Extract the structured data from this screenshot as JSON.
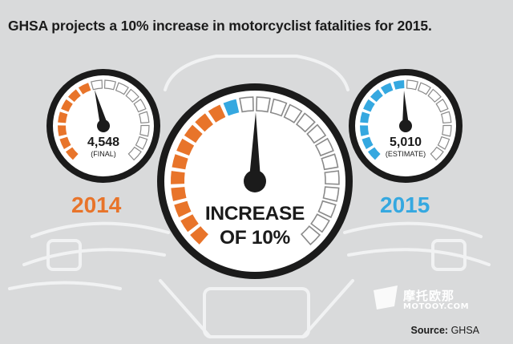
{
  "title": "GHSA projects a 10% increase in motorcyclist fatalities for 2015.",
  "colors": {
    "background": "#d9dadb",
    "orange": "#e8742a",
    "blue": "#35a8e0",
    "dark": "#1b1b1b",
    "empty_segment": "#ffffff",
    "outline": "#8a8a8a"
  },
  "gauges": [
    {
      "value": "4,548",
      "note": "(FINAL)",
      "year": "2014",
      "lit_segments": 7,
      "segment_color": "orange"
    },
    {
      "big_line1": "INCREASE",
      "big_line2": "OF 10%",
      "lit_orange": 10,
      "lit_blue": 1
    },
    {
      "value": "5,010",
      "note": "(ESTIMATE)",
      "year": "2015",
      "lit_segments": 8,
      "segment_color": "blue"
    }
  ],
  "source": {
    "label": "Source:",
    "value": "GHSA"
  },
  "watermark": {
    "cn": "摩托欧那",
    "en": "MOTOOY.COM"
  }
}
